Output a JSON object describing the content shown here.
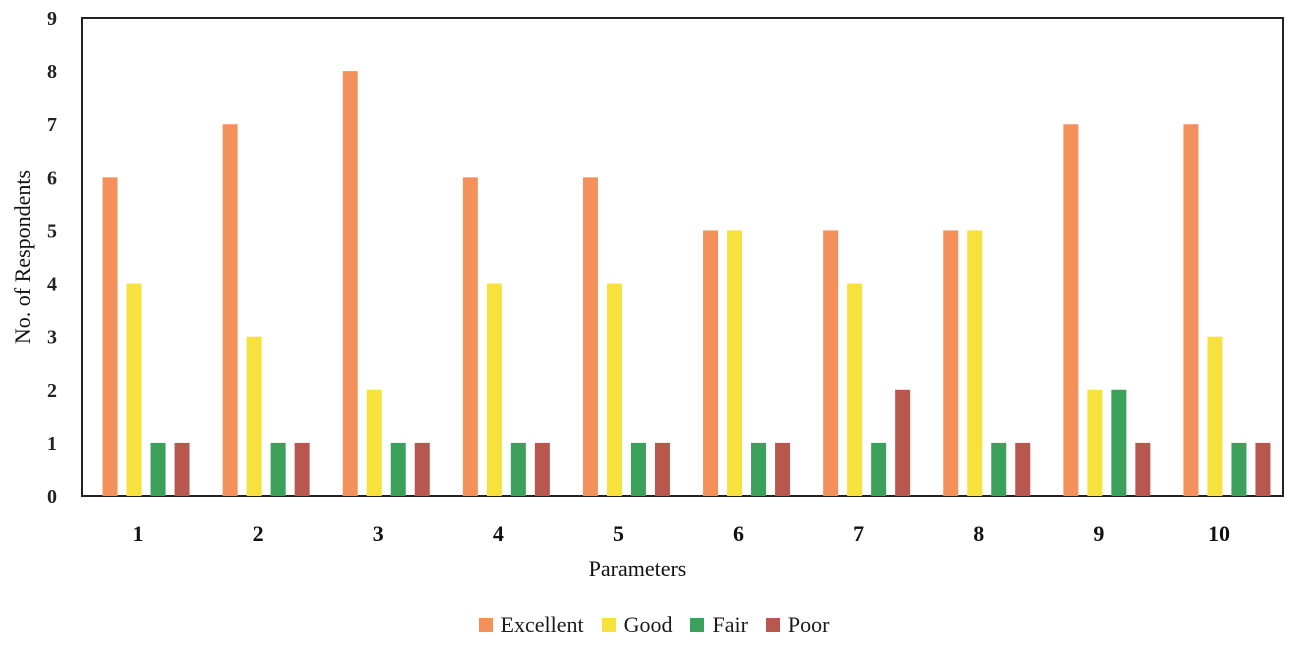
{
  "chart_data": {
    "type": "bar",
    "categories": [
      "1",
      "2",
      "3",
      "4",
      "5",
      "6",
      "7",
      "8",
      "9",
      "10"
    ],
    "series": [
      {
        "name": "Excellent",
        "color": "#f4915b",
        "values": [
          6,
          7,
          8,
          6,
          6,
          5,
          5,
          5,
          7,
          7
        ]
      },
      {
        "name": "Good",
        "color": "#f7e13c",
        "values": [
          4,
          3,
          2,
          4,
          4,
          5,
          4,
          5,
          2,
          3
        ]
      },
      {
        "name": "Fair",
        "color": "#3aa05a",
        "values": [
          1,
          1,
          1,
          1,
          1,
          1,
          1,
          1,
          2,
          1
        ]
      },
      {
        "name": "Poor",
        "color": "#b8574d",
        "values": [
          1,
          1,
          1,
          1,
          1,
          1,
          2,
          1,
          1,
          1
        ]
      }
    ],
    "xlabel": "Parameters",
    "ylabel": "No. of Respondents",
    "ylim": [
      0,
      9
    ],
    "yticks": [
      "0",
      "1",
      "2",
      "3",
      "4",
      "5",
      "6",
      "7",
      "8",
      "9"
    ],
    "legend_position": "bottom",
    "grid": false
  }
}
